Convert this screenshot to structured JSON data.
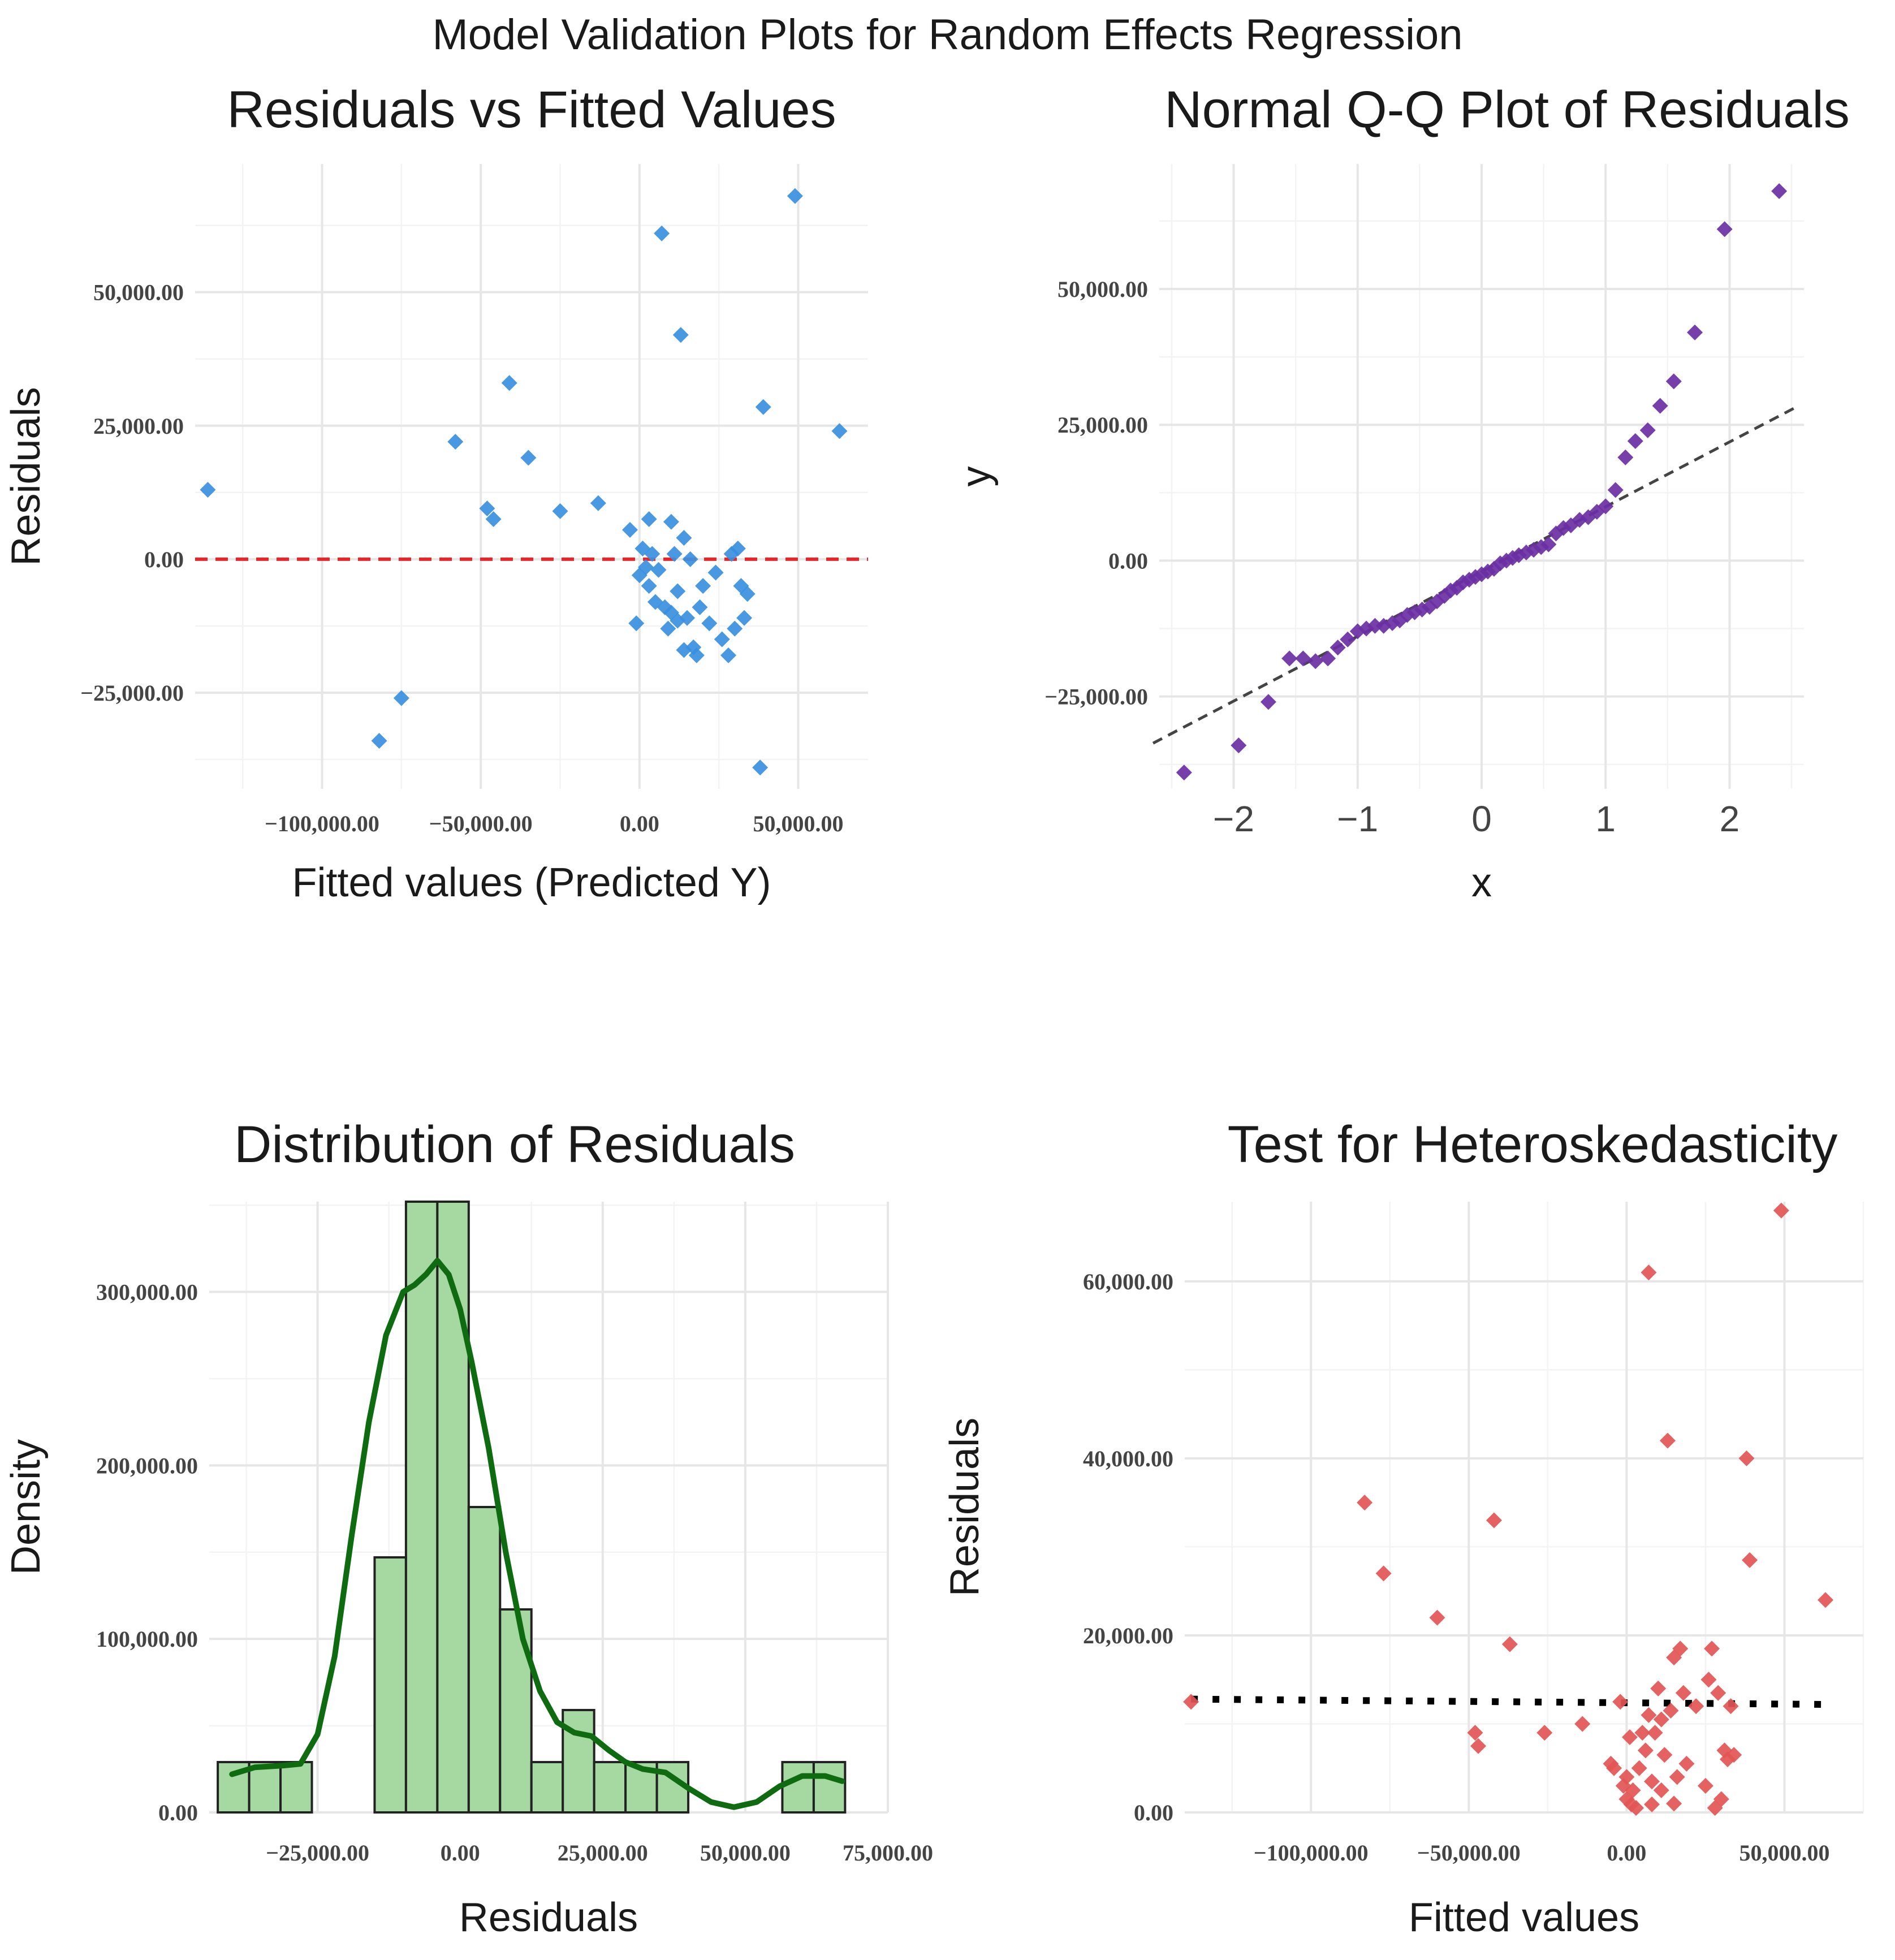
{
  "main_title": "Model Validation Plots for Random Effects Regression",
  "chart_data": [
    {
      "id": "resid-fitted",
      "type": "scatter",
      "title": "Residuals vs Fitted Values",
      "xlabel": "Fitted values (Predicted Y)",
      "ylabel": "Residuals",
      "xlim": [
        -140000,
        72000
      ],
      "ylim": [
        -43000,
        74000
      ],
      "xticks": [
        -100000,
        -50000,
        0,
        50000
      ],
      "xtick_labels": [
        "−100,000.00",
        "−50,000.00",
        "0.00",
        "50,000.00"
      ],
      "yticks": [
        -25000,
        0,
        25000,
        50000
      ],
      "ytick_labels": [
        "−25,000.00",
        "0.00",
        "25,000.00",
        "50,000.00"
      ],
      "point_color": "#3a8fe0",
      "hline": {
        "y": 0,
        "color": "#e8262a",
        "style": "dashed"
      },
      "points": [
        [
          -136000,
          13000
        ],
        [
          -82000,
          -34000
        ],
        [
          -75000,
          -26000
        ],
        [
          -58000,
          22000
        ],
        [
          -48000,
          9500
        ],
        [
          -46000,
          7500
        ],
        [
          -41000,
          33000
        ],
        [
          -35000,
          19000
        ],
        [
          -25000,
          9000
        ],
        [
          -13000,
          10500
        ],
        [
          -3000,
          5500
        ],
        [
          -1000,
          -12000
        ],
        [
          0,
          -3000
        ],
        [
          1000,
          2000
        ],
        [
          2000,
          -1500
        ],
        [
          3000,
          7500
        ],
        [
          3000,
          -5000
        ],
        [
          4000,
          1000
        ],
        [
          5000,
          -8000
        ],
        [
          6000,
          -2000
        ],
        [
          7000,
          61000
        ],
        [
          8000,
          -9000
        ],
        [
          9000,
          -13000
        ],
        [
          10000,
          -10000
        ],
        [
          10000,
          7000
        ],
        [
          11000,
          1000
        ],
        [
          12000,
          -6000
        ],
        [
          12000,
          -11500
        ],
        [
          13000,
          42000
        ],
        [
          14000,
          4000
        ],
        [
          14000,
          -17000
        ],
        [
          15000,
          -11000
        ],
        [
          16000,
          0
        ],
        [
          17000,
          -16500
        ],
        [
          18000,
          -18000
        ],
        [
          19000,
          -9000
        ],
        [
          20000,
          -5000
        ],
        [
          22000,
          -12000
        ],
        [
          24000,
          -2500
        ],
        [
          26000,
          -15000
        ],
        [
          28000,
          -18000
        ],
        [
          29000,
          1000
        ],
        [
          30000,
          -13000
        ],
        [
          31000,
          2000
        ],
        [
          32000,
          -5000
        ],
        [
          33000,
          -11000
        ],
        [
          34000,
          -6500
        ],
        [
          38000,
          -39000
        ],
        [
          39000,
          28500
        ],
        [
          49000,
          68000
        ],
        [
          63000,
          24000
        ]
      ]
    },
    {
      "id": "qq-plot",
      "type": "scatter",
      "title": "Normal Q-Q Plot of Residuals",
      "xlabel": "x",
      "ylabel": "y",
      "xlim": [
        -2.6,
        2.6
      ],
      "ylim": [
        -42000,
        73000
      ],
      "xticks": [
        -2,
        -1,
        0,
        1,
        2
      ],
      "xtick_labels": [
        "−2",
        "−1",
        "0",
        "1",
        "2"
      ],
      "yticks": [
        -25000,
        0,
        25000,
        50000
      ],
      "ytick_labels": [
        "−25,000.00",
        "0.00",
        "25,000.00",
        "50,000.00"
      ],
      "point_color": "#6a2fa3",
      "reference_line": {
        "x": [
          -2.6,
          2.6
        ],
        "y": [
          -33000,
          29000
        ],
        "color": "#444444",
        "style": "dashed"
      },
      "points": [
        [
          -2.4,
          -39000
        ],
        [
          -1.96,
          -34000
        ],
        [
          -1.72,
          -26000
        ],
        [
          -1.55,
          -18000
        ],
        [
          -1.44,
          -18000
        ],
        [
          -1.34,
          -18500
        ],
        [
          -1.24,
          -18000
        ],
        [
          -1.16,
          -16000
        ],
        [
          -1.08,
          -14500
        ],
        [
          -1.0,
          -13000
        ],
        [
          -0.93,
          -12500
        ],
        [
          -0.86,
          -12000
        ],
        [
          -0.79,
          -12000
        ],
        [
          -0.72,
          -11500
        ],
        [
          -0.66,
          -11000
        ],
        [
          -0.6,
          -10000
        ],
        [
          -0.54,
          -9500
        ],
        [
          -0.48,
          -9000
        ],
        [
          -0.42,
          -8500
        ],
        [
          -0.36,
          -7500
        ],
        [
          -0.3,
          -6500
        ],
        [
          -0.25,
          -5500
        ],
        [
          -0.2,
          -5000
        ],
        [
          -0.15,
          -4000
        ],
        [
          -0.1,
          -3500
        ],
        [
          -0.05,
          -3000
        ],
        [
          0.0,
          -2500
        ],
        [
          0.05,
          -2000
        ],
        [
          0.1,
          -1500
        ],
        [
          0.15,
          -500
        ],
        [
          0.2,
          0
        ],
        [
          0.25,
          500
        ],
        [
          0.3,
          1000
        ],
        [
          0.36,
          1500
        ],
        [
          0.42,
          2000
        ],
        [
          0.48,
          2500
        ],
        [
          0.54,
          3000
        ],
        [
          0.6,
          5000
        ],
        [
          0.66,
          6000
        ],
        [
          0.72,
          6500
        ],
        [
          0.79,
          7500
        ],
        [
          0.86,
          8000
        ],
        [
          0.93,
          9000
        ],
        [
          1.0,
          10000
        ],
        [
          1.08,
          13000
        ],
        [
          1.16,
          19000
        ],
        [
          1.24,
          22000
        ],
        [
          1.34,
          24000
        ],
        [
          1.44,
          28500
        ],
        [
          1.55,
          33000
        ],
        [
          1.72,
          42000
        ],
        [
          1.96,
          61000
        ],
        [
          2.4,
          68000
        ]
      ]
    },
    {
      "id": "residual-histogram",
      "type": "bar",
      "title": "Distribution of Residuals",
      "xlabel": "Residuals",
      "ylabel": "Density",
      "xlim": [
        -44000,
        75000
      ],
      "ylim": [
        0,
        352000
      ],
      "xticks": [
        -25000,
        0,
        25000,
        50000,
        75000
      ],
      "xtick_labels": [
        "−25,000.00",
        "0.00",
        "25,000.00",
        "50,000.00",
        "75,000.00"
      ],
      "yticks": [
        0,
        100000,
        200000,
        300000
      ],
      "ytick_labels": [
        "0.00",
        "100,000.00",
        "200,000.00",
        "300,000.00"
      ],
      "bar_fill": "#a6d9a2",
      "bar_edge": "#222222",
      "curve_color": "#0e6b10",
      "bin_width": 5500,
      "bins": [
        {
          "start": -42500,
          "density": 29000
        },
        {
          "start": -37000,
          "density": 29000
        },
        {
          "start": -31500,
          "density": 29000
        },
        {
          "start": -26000,
          "density": 0
        },
        {
          "start": -20500,
          "density": 0
        },
        {
          "start": -15000,
          "density": 147000
        },
        {
          "start": -9500,
          "density": 352000
        },
        {
          "start": -4000,
          "density": 352000
        },
        {
          "start": 1500,
          "density": 176000
        },
        {
          "start": 7000,
          "density": 117000
        },
        {
          "start": 12500,
          "density": 29000
        },
        {
          "start": 18000,
          "density": 59000
        },
        {
          "start": 23500,
          "density": 29000
        },
        {
          "start": 29000,
          "density": 29000
        },
        {
          "start": 34500,
          "density": 29000
        },
        {
          "start": 40000,
          "density": 0
        },
        {
          "start": 45500,
          "density": 0
        },
        {
          "start": 51000,
          "density": 0
        },
        {
          "start": 56500,
          "density": 29000
        },
        {
          "start": 62000,
          "density": 29000
        }
      ],
      "density_curve": [
        [
          -40000,
          22000
        ],
        [
          -36000,
          26000
        ],
        [
          -31000,
          27000
        ],
        [
          -28000,
          28000
        ],
        [
          -25000,
          45000
        ],
        [
          -22000,
          90000
        ],
        [
          -19000,
          160000
        ],
        [
          -16000,
          225000
        ],
        [
          -13000,
          275000
        ],
        [
          -10000,
          300000
        ],
        [
          -8000,
          304000
        ],
        [
          -6000,
          310000
        ],
        [
          -4000,
          318000
        ],
        [
          -2000,
          310000
        ],
        [
          0,
          290000
        ],
        [
          2000,
          260000
        ],
        [
          5000,
          210000
        ],
        [
          8000,
          150000
        ],
        [
          11000,
          100000
        ],
        [
          14000,
          70000
        ],
        [
          17000,
          52000
        ],
        [
          20000,
          46000
        ],
        [
          23000,
          44000
        ],
        [
          26000,
          36000
        ],
        [
          29000,
          29000
        ],
        [
          32000,
          25000
        ],
        [
          36000,
          23000
        ],
        [
          40000,
          14000
        ],
        [
          44000,
          6000
        ],
        [
          48000,
          3000
        ],
        [
          52000,
          6000
        ],
        [
          56000,
          15000
        ],
        [
          60000,
          21000
        ],
        [
          64000,
          21000
        ],
        [
          67000,
          18000
        ]
      ]
    },
    {
      "id": "heteroskedasticity",
      "type": "scatter",
      "title": "Test for Heteroskedasticity",
      "xlabel": "Fitted values",
      "ylabel": "Residuals",
      "xlim": [
        -140000,
        75000
      ],
      "ylim": [
        0,
        69000
      ],
      "xticks": [
        -100000,
        -50000,
        0,
        50000
      ],
      "xtick_labels": [
        "−100,000.00",
        "−50,000.00",
        "0.00",
        "50,000.00"
      ],
      "yticks": [
        0,
        20000,
        40000,
        60000
      ],
      "ytick_labels": [
        "0.00",
        "20,000.00",
        "40,000.00",
        "60,000.00"
      ],
      "point_color": "#e35555",
      "trend_line": {
        "x": [
          -138000,
          63000
        ],
        "y": [
          12800,
          12200
        ],
        "color": "#000000",
        "style": "dotted"
      },
      "points": [
        [
          -138000,
          12500
        ],
        [
          -83000,
          35000
        ],
        [
          -77000,
          27000
        ],
        [
          -60000,
          22000
        ],
        [
          -48000,
          9000
        ],
        [
          -47000,
          7500
        ],
        [
          -42000,
          33000
        ],
        [
          -37000,
          19000
        ],
        [
          -26000,
          9000
        ],
        [
          -14000,
          10000
        ],
        [
          -5000,
          5500
        ],
        [
          -4000,
          5000
        ],
        [
          -2000,
          12500
        ],
        [
          -1000,
          3000
        ],
        [
          0,
          1500
        ],
        [
          0,
          4000
        ],
        [
          1000,
          8500
        ],
        [
          1500,
          900
        ],
        [
          2000,
          2500
        ],
        [
          3000,
          500
        ],
        [
          4000,
          5000
        ],
        [
          5000,
          9000
        ],
        [
          6000,
          7000
        ],
        [
          7000,
          61000
        ],
        [
          7000,
          11000
        ],
        [
          8000,
          3500
        ],
        [
          8000,
          900
        ],
        [
          9000,
          9000
        ],
        [
          10000,
          14000
        ],
        [
          11000,
          2500
        ],
        [
          11000,
          10500
        ],
        [
          12000,
          6500
        ],
        [
          13000,
          42000
        ],
        [
          14000,
          11500
        ],
        [
          15000,
          1000
        ],
        [
          15000,
          17500
        ],
        [
          16000,
          4000
        ],
        [
          17000,
          18500
        ],
        [
          18000,
          13500
        ],
        [
          19000,
          5500
        ],
        [
          22000,
          12000
        ],
        [
          25000,
          3000
        ],
        [
          26000,
          15000
        ],
        [
          27000,
          18500
        ],
        [
          28000,
          500
        ],
        [
          29000,
          13500
        ],
        [
          30000,
          1500
        ],
        [
          31000,
          7000
        ],
        [
          32000,
          6000
        ],
        [
          33000,
          12000
        ],
        [
          34000,
          6500
        ],
        [
          38000,
          40000
        ],
        [
          39000,
          28500
        ],
        [
          49000,
          68000
        ],
        [
          63000,
          24000
        ]
      ]
    }
  ]
}
